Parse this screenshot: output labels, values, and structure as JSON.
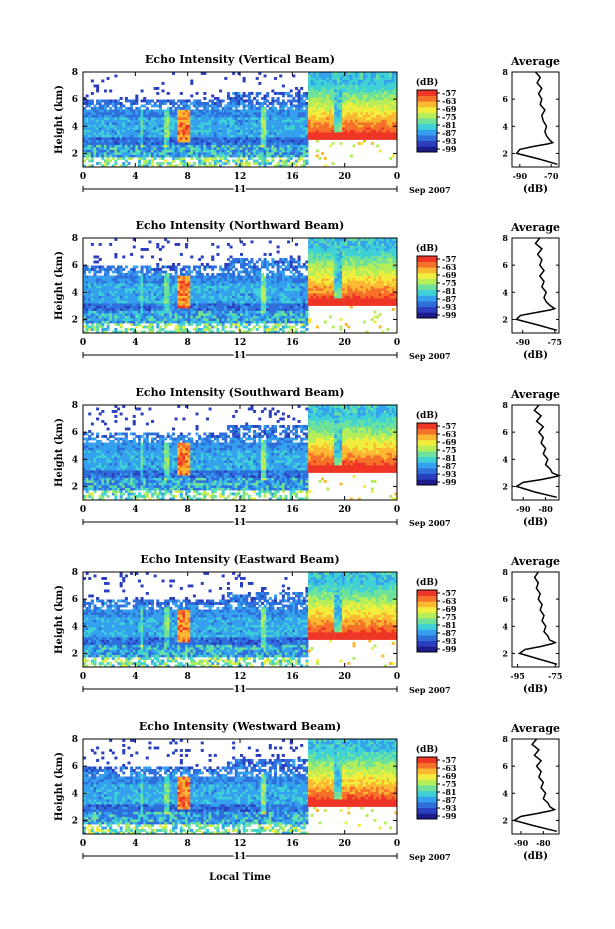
{
  "figure": {
    "x_axis_label": "Local Time",
    "day_label": "11",
    "month_label": "Sep 2007"
  },
  "chart_data": [
    {
      "type": "heatmap",
      "title": "Echo Intensity (Vertical Beam)",
      "ylabel": "Height (km)",
      "xlabel": "Local Time",
      "x_ticks": [
        "0",
        "4",
        "8",
        "12",
        "16",
        "20",
        "0"
      ],
      "y_ticks": [
        "2",
        "4",
        "6",
        "8"
      ],
      "xlim": [
        0,
        24
      ],
      "ylim": [
        1,
        8
      ],
      "colorbar": {
        "unit": "(dB)",
        "levels": [
          "-57",
          "-63",
          "-69",
          "-75",
          "-81",
          "-87",
          "-93",
          "-99"
        ]
      },
      "average": {
        "title": "Average",
        "xlabel": "(dB)",
        "x_ticks": [
          "-90",
          "-70"
        ],
        "xlim": [
          -95,
          -65
        ],
        "y_ticks": [
          "2",
          "4",
          "6",
          "8"
        ],
        "ylim": [
          1,
          8
        ],
        "heights": [
          1.2,
          1.6,
          2.0,
          2.3,
          2.5,
          2.7,
          2.8,
          3.0,
          3.3,
          3.6,
          4.0,
          4.4,
          4.8,
          5.2,
          5.6,
          6.0,
          6.4,
          6.8,
          7.2,
          7.6,
          8.0
        ],
        "values": [
          -66,
          -78,
          -92,
          -90,
          -82,
          -72,
          -69,
          -71,
          -73,
          -74,
          -73,
          -75,
          -76,
          -74,
          -77,
          -76,
          -78,
          -76,
          -79,
          -77,
          -80
        ]
      }
    },
    {
      "type": "heatmap",
      "title": "Echo Intensity (Northward Beam)",
      "ylabel": "Height (km)",
      "xlabel": "Local Time",
      "x_ticks": [
        "0",
        "4",
        "8",
        "12",
        "16",
        "20",
        "0"
      ],
      "y_ticks": [
        "2",
        "4",
        "6",
        "8"
      ],
      "xlim": [
        0,
        24
      ],
      "ylim": [
        1,
        8
      ],
      "colorbar": {
        "unit": "(dB)",
        "levels": [
          "-57",
          "-63",
          "-69",
          "-75",
          "-81",
          "-87",
          "-93",
          "-99"
        ]
      },
      "average": {
        "title": "Average",
        "xlabel": "(dB)",
        "x_ticks": [
          "-90",
          "-75"
        ],
        "xlim": [
          -95,
          -73
        ],
        "y_ticks": [
          "2",
          "4",
          "6",
          "8"
        ],
        "ylim": [
          1,
          8
        ],
        "heights": [
          1.2,
          1.6,
          2.0,
          2.3,
          2.5,
          2.7,
          2.8,
          3.0,
          3.3,
          3.6,
          4.0,
          4.4,
          4.8,
          5.2,
          5.6,
          6.0,
          6.4,
          6.8,
          7.2,
          7.6,
          8.0
        ],
        "values": [
          -74,
          -83,
          -93,
          -91,
          -84,
          -77,
          -75,
          -77,
          -79,
          -80,
          -79,
          -81,
          -80,
          -82,
          -80,
          -82,
          -81,
          -83,
          -81,
          -84,
          -82
        ]
      }
    },
    {
      "type": "heatmap",
      "title": "Echo Intensity (Southward Beam)",
      "ylabel": "Height (km)",
      "xlabel": "Local Time",
      "x_ticks": [
        "0",
        "4",
        "8",
        "12",
        "16",
        "20",
        "0"
      ],
      "y_ticks": [
        "2",
        "4",
        "6",
        "8"
      ],
      "xlim": [
        0,
        24
      ],
      "ylim": [
        1,
        8
      ],
      "colorbar": {
        "unit": "(dB)",
        "levels": [
          "-57",
          "-63",
          "-69",
          "-75",
          "-81",
          "-87",
          "-93",
          "-99"
        ]
      },
      "average": {
        "title": "Average",
        "xlabel": "(dB)",
        "x_ticks": [
          "-90",
          "-80"
        ],
        "xlim": [
          -95,
          -74
        ],
        "y_ticks": [
          "2",
          "4",
          "6",
          "8"
        ],
        "ylim": [
          1,
          8
        ],
        "heights": [
          1.2,
          1.6,
          2.0,
          2.3,
          2.5,
          2.7,
          2.8,
          3.0,
          3.3,
          3.6,
          4.0,
          4.4,
          4.8,
          5.2,
          5.6,
          6.0,
          6.4,
          6.8,
          7.2,
          7.6,
          8.0
        ],
        "values": [
          -75,
          -85,
          -93,
          -90,
          -82,
          -76,
          -74,
          -77,
          -78,
          -80,
          -79,
          -81,
          -80,
          -82,
          -81,
          -83,
          -81,
          -84,
          -82,
          -85,
          -83
        ]
      }
    },
    {
      "type": "heatmap",
      "title": "Echo Intensity (Eastward Beam)",
      "ylabel": "Height (km)",
      "xlabel": "Local Time",
      "x_ticks": [
        "0",
        "4",
        "8",
        "12",
        "16",
        "20",
        "0"
      ],
      "y_ticks": [
        "2",
        "4",
        "6",
        "8"
      ],
      "xlim": [
        0,
        24
      ],
      "ylim": [
        1,
        8
      ],
      "colorbar": {
        "unit": "(dB)",
        "levels": [
          "-57",
          "-63",
          "-69",
          "-75",
          "-81",
          "-87",
          "-93",
          "-99"
        ]
      },
      "average": {
        "title": "Average",
        "xlabel": "(dB)",
        "x_ticks": [
          "-95",
          "-75"
        ],
        "xlim": [
          -98,
          -73
        ],
        "y_ticks": [
          "2",
          "4",
          "6",
          "8"
        ],
        "ylim": [
          1,
          8
        ],
        "heights": [
          1.2,
          1.6,
          2.0,
          2.3,
          2.5,
          2.7,
          2.8,
          3.0,
          3.3,
          3.6,
          4.0,
          4.4,
          4.8,
          5.2,
          5.6,
          6.0,
          6.4,
          6.8,
          7.2,
          7.6,
          8.0
        ],
        "values": [
          -74,
          -84,
          -94,
          -91,
          -83,
          -77,
          -75,
          -78,
          -79,
          -81,
          -80,
          -82,
          -81,
          -83,
          -82,
          -84,
          -83,
          -85,
          -84,
          -86,
          -84
        ]
      }
    },
    {
      "type": "heatmap",
      "title": "Echo Intensity (Westward Beam)",
      "ylabel": "Height (km)",
      "xlabel": "Local Time",
      "x_ticks": [
        "0",
        "4",
        "8",
        "12",
        "16",
        "20",
        "0"
      ],
      "y_ticks": [
        "2",
        "4",
        "6",
        "8"
      ],
      "xlim": [
        0,
        24
      ],
      "ylim": [
        1,
        8
      ],
      "colorbar": {
        "unit": "(dB)",
        "levels": [
          "-57",
          "-63",
          "-69",
          "-75",
          "-81",
          "-87",
          "-93",
          "-99"
        ]
      },
      "average": {
        "title": "Average",
        "xlabel": "(dB)",
        "x_ticks": [
          "-90",
          "-80"
        ],
        "xlim": [
          -94,
          -73
        ],
        "y_ticks": [
          "2",
          "4",
          "6",
          "8"
        ],
        "ylim": [
          1,
          8
        ],
        "heights": [
          1.2,
          1.6,
          2.0,
          2.3,
          2.5,
          2.7,
          2.8,
          3.0,
          3.3,
          3.6,
          4.0,
          4.4,
          4.8,
          5.2,
          5.6,
          6.0,
          6.4,
          6.8,
          7.2,
          7.6,
          8.0
        ],
        "values": [
          -74,
          -84,
          -93,
          -90,
          -83,
          -77,
          -75,
          -77,
          -78,
          -80,
          -79,
          -81,
          -80,
          -82,
          -81,
          -83,
          -81,
          -84,
          -82,
          -85,
          -83
        ]
      }
    }
  ],
  "colors": {
    "palette": [
      "#1c1c8c",
      "#2a3fbf",
      "#2f6fdc",
      "#35a0ee",
      "#3fd1d6",
      "#6ee29a",
      "#b6ee5a",
      "#f2ee3e",
      "#fbb932",
      "#f6712a",
      "#ee3526"
    ],
    "background": "#ffffff",
    "axis": "#000000"
  }
}
